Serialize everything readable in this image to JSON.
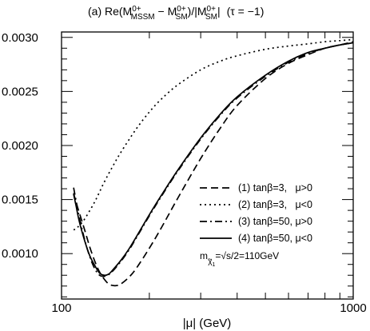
{
  "chart_data": {
    "type": "line",
    "title_parts": {
      "prefix": "(a) Re(M",
      "sup1": "0+",
      "sub1": "MSSM",
      "minus": " − M",
      "sup2": "0+",
      "sub2": "SM",
      "mid": ")/|M",
      "sup3": "0+",
      "sub3": "SM",
      "suffix": "|",
      "tau": "(τ = −1)"
    },
    "xlabel": "|μ| (GeV)",
    "ylabel": "",
    "xscale": "log",
    "xlim": [
      100,
      1000
    ],
    "ylim": [
      0.00058,
      0.00305
    ],
    "x_tick_labels": [
      {
        "value": 100,
        "label": "100"
      },
      {
        "value": 1000,
        "label": "1000"
      }
    ],
    "y_tick_labels": [
      {
        "value": 0.001,
        "label": "0.0010"
      },
      {
        "value": 0.0015,
        "label": "0.0015"
      },
      {
        "value": 0.002,
        "label": "0.0020"
      },
      {
        "value": 0.0025,
        "label": "0.0025"
      },
      {
        "value": 0.003,
        "label": "0.0030"
      }
    ],
    "legend_position": "center-right",
    "annotation": {
      "m": "m",
      "chi": "χ",
      "sub": "1",
      "rest": "=√s/2=110GeV"
    },
    "series": [
      {
        "name": "(1) tanβ=3,   μ>0",
        "dash": "9,5",
        "x": [
          110,
          112,
          115,
          120,
          125,
          130,
          135,
          140,
          145,
          150,
          155,
          160,
          170,
          180,
          200,
          220,
          250,
          300,
          350,
          400,
          500,
          600,
          700,
          800,
          900,
          1000
        ],
        "y": [
          0.00156,
          0.00148,
          0.00138,
          0.00122,
          0.00106,
          0.00093,
          0.00083,
          0.000765,
          0.00072,
          0.000705,
          0.000705,
          0.00072,
          0.00078,
          0.00086,
          0.00105,
          0.00124,
          0.00151,
          0.00188,
          0.00216,
          0.00237,
          0.00262,
          0.00276,
          0.00284,
          0.0029,
          0.00293,
          0.00296
        ]
      },
      {
        "name": "(2) tanβ=3,   μ<0",
        "dash": "2,4",
        "x": [
          110,
          112,
          115,
          120,
          130,
          140,
          150,
          160,
          180,
          200,
          220,
          250,
          300,
          350,
          400,
          500,
          600,
          700,
          800,
          900,
          1000
        ],
        "y": [
          0.00122,
          0.00123,
          0.00126,
          0.00132,
          0.00148,
          0.00166,
          0.00181,
          0.00194,
          0.00215,
          0.00231,
          0.00243,
          0.00256,
          0.0027,
          0.00278,
          0.00283,
          0.00289,
          0.00292,
          0.00294,
          0.00296,
          0.00297,
          0.00298
        ]
      },
      {
        "name": "(3) tanβ=50, μ>0",
        "dash": "9,4,2,4",
        "x": [
          110,
          112,
          115,
          120,
          125,
          130,
          135,
          140,
          145,
          150,
          160,
          170,
          180,
          200,
          220,
          250,
          300,
          350,
          400,
          500,
          600,
          700,
          800,
          900,
          1000
        ],
        "y": [
          0.00161,
          0.0015,
          0.00134,
          0.00113,
          0.00097,
          0.00086,
          0.0008,
          0.00079,
          0.000805,
          0.00084,
          0.00093,
          0.00103,
          0.00114,
          0.00135,
          0.00153,
          0.00176,
          0.00206,
          0.00228,
          0.00244,
          0.00264,
          0.00277,
          0.00285,
          0.0029,
          0.00293,
          0.00295
        ]
      },
      {
        "name": "(4) tanβ=50, μ<0",
        "dash": "",
        "x": [
          110,
          112,
          115,
          120,
          125,
          130,
          135,
          140,
          145,
          150,
          160,
          170,
          180,
          200,
          220,
          250,
          300,
          350,
          400,
          500,
          600,
          700,
          800,
          900,
          1000
        ],
        "y": [
          0.00155,
          0.00145,
          0.0013,
          0.00112,
          0.00098,
          0.00089,
          0.00082,
          0.0008,
          0.00081,
          0.00085,
          0.00094,
          0.00104,
          0.00115,
          0.00136,
          0.00154,
          0.00177,
          0.00207,
          0.00229,
          0.00245,
          0.00265,
          0.00278,
          0.00286,
          0.0029,
          0.00293,
          0.00295
        ]
      }
    ]
  }
}
